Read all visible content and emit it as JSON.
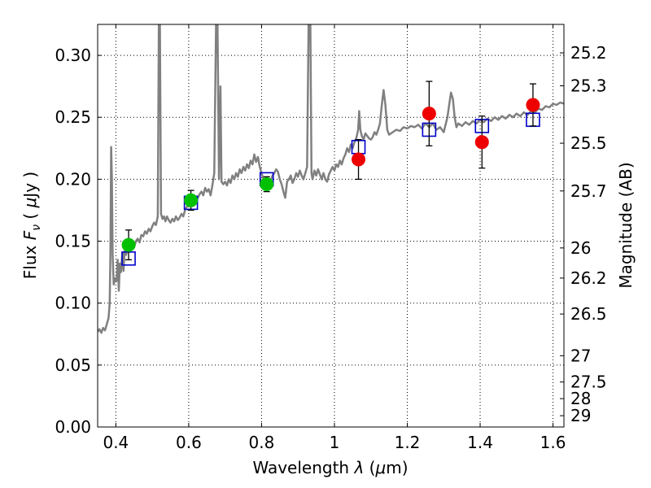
{
  "chart_data": {
    "type": "scatter",
    "xlabel": {
      "prefix": "Wavelength  ",
      "symbol": "λ",
      "suffix_open": " (",
      "mu": "μ",
      "suffix_close": "m)"
    },
    "ylabel": {
      "prefix": "Flux  ",
      "symbol": "F",
      "sub": "ν",
      "suffix_open": "  ( ",
      "mu": "μ",
      "suffix_close": "Jy )"
    },
    "y2label": "Magnitude (AB)",
    "xlim": [
      0.35,
      1.63
    ],
    "ylim": [
      0.0,
      0.325
    ],
    "grid": true,
    "x_ticks": [
      {
        "v": 0.4,
        "label": "0.4"
      },
      {
        "v": 0.6,
        "label": "0.6"
      },
      {
        "v": 0.8,
        "label": "0.8"
      },
      {
        "v": 1.0,
        "label": "1"
      },
      {
        "v": 1.2,
        "label": "1.2"
      },
      {
        "v": 1.4,
        "label": "1.4"
      },
      {
        "v": 1.6,
        "label": "1.6"
      }
    ],
    "y_ticks": [
      {
        "v": 0.0,
        "label": "0.00"
      },
      {
        "v": 0.05,
        "label": "0.05"
      },
      {
        "v": 0.1,
        "label": "0.10"
      },
      {
        "v": 0.15,
        "label": "0.15"
      },
      {
        "v": 0.2,
        "label": "0.20"
      },
      {
        "v": 0.25,
        "label": "0.25"
      },
      {
        "v": 0.3,
        "label": "0.30"
      }
    ],
    "mag_ticks": [
      "25.2",
      "25.3",
      "25.5",
      "25.7",
      "26",
      "26.2",
      "26.5",
      "27",
      "27.5",
      "28",
      "29"
    ],
    "spectrum": {
      "color": "#808080",
      "points": [
        [
          0.35,
          0.077
        ],
        [
          0.355,
          0.079
        ],
        [
          0.36,
          0.076
        ],
        [
          0.365,
          0.08
        ],
        [
          0.37,
          0.078
        ],
        [
          0.375,
          0.083
        ],
        [
          0.38,
          0.088
        ],
        [
          0.383,
          0.1
        ],
        [
          0.385,
          0.14
        ],
        [
          0.387,
          0.226
        ],
        [
          0.389,
          0.2
        ],
        [
          0.391,
          0.14
        ],
        [
          0.394,
          0.115
        ],
        [
          0.398,
          0.12
        ],
        [
          0.402,
          0.118
        ],
        [
          0.405,
          0.135
        ],
        [
          0.408,
          0.11
        ],
        [
          0.411,
          0.132
        ],
        [
          0.414,
          0.125
        ],
        [
          0.418,
          0.141
        ],
        [
          0.421,
          0.126
        ],
        [
          0.424,
          0.142
        ],
        [
          0.428,
          0.139
        ],
        [
          0.432,
          0.143
        ],
        [
          0.435,
          0.148
        ],
        [
          0.44,
          0.142
        ],
        [
          0.445,
          0.146
        ],
        [
          0.45,
          0.145
        ],
        [
          0.455,
          0.15
        ],
        [
          0.46,
          0.152
        ],
        [
          0.465,
          0.149
        ],
        [
          0.47,
          0.155
        ],
        [
          0.475,
          0.154
        ],
        [
          0.48,
          0.158
        ],
        [
          0.485,
          0.156
        ],
        [
          0.49,
          0.16
        ],
        [
          0.495,
          0.158
        ],
        [
          0.5,
          0.162
        ],
        [
          0.505,
          0.165
        ],
        [
          0.51,
          0.163
        ],
        [
          0.515,
          0.17
        ],
        [
          0.518,
          0.325
        ],
        [
          0.521,
          0.325
        ],
        [
          0.524,
          0.172
        ],
        [
          0.528,
          0.168
        ],
        [
          0.532,
          0.17
        ],
        [
          0.536,
          0.166
        ],
        [
          0.54,
          0.17
        ],
        [
          0.545,
          0.167
        ],
        [
          0.55,
          0.165
        ],
        [
          0.555,
          0.168
        ],
        [
          0.56,
          0.166
        ],
        [
          0.565,
          0.17
        ],
        [
          0.57,
          0.167
        ],
        [
          0.575,
          0.169
        ],
        [
          0.58,
          0.172
        ],
        [
          0.585,
          0.17
        ],
        [
          0.59,
          0.175
        ],
        [
          0.595,
          0.178
        ],
        [
          0.6,
          0.18
        ],
        [
          0.605,
          0.182
        ],
        [
          0.61,
          0.184
        ],
        [
          0.615,
          0.182
        ],
        [
          0.62,
          0.186
        ],
        [
          0.625,
          0.185
        ],
        [
          0.63,
          0.188
        ],
        [
          0.635,
          0.19
        ],
        [
          0.64,
          0.187
        ],
        [
          0.645,
          0.193
        ],
        [
          0.65,
          0.19
        ],
        [
          0.655,
          0.192
        ],
        [
          0.66,
          0.187
        ],
        [
          0.665,
          0.195
        ],
        [
          0.67,
          0.205
        ],
        [
          0.675,
          0.325
        ],
        [
          0.679,
          0.325
        ],
        [
          0.683,
          0.2
        ],
        [
          0.687,
          0.275
        ],
        [
          0.69,
          0.198
        ],
        [
          0.695,
          0.196
        ],
        [
          0.7,
          0.198
        ],
        [
          0.705,
          0.195
        ],
        [
          0.71,
          0.2
        ],
        [
          0.715,
          0.197
        ],
        [
          0.72,
          0.203
        ],
        [
          0.725,
          0.2
        ],
        [
          0.73,
          0.205
        ],
        [
          0.735,
          0.202
        ],
        [
          0.74,
          0.208
        ],
        [
          0.745,
          0.205
        ],
        [
          0.75,
          0.21
        ],
        [
          0.755,
          0.207
        ],
        [
          0.76,
          0.212
        ],
        [
          0.765,
          0.209
        ],
        [
          0.77,
          0.215
        ],
        [
          0.775,
          0.212
        ],
        [
          0.78,
          0.22
        ],
        [
          0.785,
          0.214
        ],
        [
          0.79,
          0.218
        ],
        [
          0.795,
          0.21
        ],
        [
          0.8,
          0.205
        ],
        [
          0.805,
          0.2
        ],
        [
          0.81,
          0.198
        ],
        [
          0.815,
          0.197
        ],
        [
          0.82,
          0.2
        ],
        [
          0.825,
          0.199
        ],
        [
          0.83,
          0.203
        ],
        [
          0.835,
          0.205
        ],
        [
          0.84,
          0.208
        ],
        [
          0.845,
          0.206
        ],
        [
          0.85,
          0.2
        ],
        [
          0.855,
          0.196
        ],
        [
          0.86,
          0.19
        ],
        [
          0.865,
          0.185
        ],
        [
          0.87,
          0.198
        ],
        [
          0.875,
          0.2
        ],
        [
          0.88,
          0.203
        ],
        [
          0.885,
          0.197
        ],
        [
          0.89,
          0.2
        ],
        [
          0.895,
          0.205
        ],
        [
          0.9,
          0.202
        ],
        [
          0.905,
          0.207
        ],
        [
          0.91,
          0.203
        ],
        [
          0.915,
          0.2
        ],
        [
          0.92,
          0.205
        ],
        [
          0.925,
          0.21
        ],
        [
          0.929,
          0.325
        ],
        [
          0.934,
          0.325
        ],
        [
          0.937,
          0.205
        ],
        [
          0.94,
          0.2
        ],
        [
          0.945,
          0.207
        ],
        [
          0.95,
          0.203
        ],
        [
          0.955,
          0.208
        ],
        [
          0.96,
          0.204
        ],
        [
          0.965,
          0.2
        ],
        [
          0.97,
          0.205
        ],
        [
          0.975,
          0.2
        ],
        [
          0.98,
          0.198
        ],
        [
          0.985,
          0.204
        ],
        [
          0.99,
          0.207
        ],
        [
          0.995,
          0.21
        ],
        [
          1.0,
          0.207
        ],
        [
          1.005,
          0.212
        ],
        [
          1.01,
          0.21
        ],
        [
          1.015,
          0.215
        ],
        [
          1.02,
          0.212
        ],
        [
          1.025,
          0.217
        ],
        [
          1.03,
          0.22
        ],
        [
          1.035,
          0.225
        ],
        [
          1.04,
          0.222
        ],
        [
          1.045,
          0.228
        ],
        [
          1.05,
          0.225
        ],
        [
          1.055,
          0.23
        ],
        [
          1.06,
          0.233
        ],
        [
          1.065,
          0.24
        ],
        [
          1.068,
          0.255
        ],
        [
          1.071,
          0.24
        ],
        [
          1.075,
          0.235
        ],
        [
          1.08,
          0.232
        ],
        [
          1.085,
          0.237
        ],
        [
          1.09,
          0.235
        ],
        [
          1.095,
          0.233
        ],
        [
          1.1,
          0.232
        ],
        [
          1.105,
          0.234
        ],
        [
          1.11,
          0.238
        ],
        [
          1.115,
          0.236
        ],
        [
          1.12,
          0.24
        ],
        [
          1.125,
          0.245
        ],
        [
          1.13,
          0.26
        ],
        [
          1.135,
          0.272
        ],
        [
          1.14,
          0.26
        ],
        [
          1.145,
          0.24
        ],
        [
          1.15,
          0.236
        ],
        [
          1.16,
          0.238
        ],
        [
          1.17,
          0.24
        ],
        [
          1.18,
          0.239
        ],
        [
          1.19,
          0.242
        ],
        [
          1.2,
          0.241
        ],
        [
          1.21,
          0.243
        ],
        [
          1.22,
          0.242
        ],
        [
          1.23,
          0.244
        ],
        [
          1.24,
          0.241
        ],
        [
          1.25,
          0.245
        ],
        [
          1.26,
          0.242
        ],
        [
          1.27,
          0.245
        ],
        [
          1.28,
          0.24
        ],
        [
          1.29,
          0.242
        ],
        [
          1.3,
          0.238
        ],
        [
          1.31,
          0.25
        ],
        [
          1.315,
          0.26
        ],
        [
          1.32,
          0.27
        ],
        [
          1.325,
          0.265
        ],
        [
          1.33,
          0.25
        ],
        [
          1.335,
          0.242
        ],
        [
          1.34,
          0.245
        ],
        [
          1.35,
          0.243
        ],
        [
          1.36,
          0.246
        ],
        [
          1.37,
          0.244
        ],
        [
          1.38,
          0.247
        ],
        [
          1.39,
          0.245
        ],
        [
          1.4,
          0.248
        ],
        [
          1.41,
          0.246
        ],
        [
          1.42,
          0.249
        ],
        [
          1.43,
          0.247
        ],
        [
          1.44,
          0.25
        ],
        [
          1.45,
          0.248
        ],
        [
          1.46,
          0.251
        ],
        [
          1.47,
          0.249
        ],
        [
          1.48,
          0.252
        ],
        [
          1.49,
          0.25
        ],
        [
          1.5,
          0.253
        ],
        [
          1.51,
          0.251
        ],
        [
          1.52,
          0.254
        ],
        [
          1.53,
          0.252
        ],
        [
          1.54,
          0.255
        ],
        [
          1.55,
          0.254
        ],
        [
          1.56,
          0.257
        ],
        [
          1.57,
          0.256
        ],
        [
          1.58,
          0.259
        ],
        [
          1.59,
          0.258
        ],
        [
          1.6,
          0.261
        ],
        [
          1.61,
          0.26
        ],
        [
          1.62,
          0.262
        ],
        [
          1.63,
          0.261
        ]
      ]
    },
    "series": [
      {
        "marker": "circle",
        "color": "#00c000",
        "points": [
          {
            "x": 0.435,
            "y": 0.147,
            "err": 0.012
          },
          {
            "x": 0.606,
            "y": 0.183,
            "err": 0.008
          },
          {
            "x": 0.814,
            "y": 0.196,
            "err": 0.006
          }
        ]
      },
      {
        "marker": "circle",
        "color": "#ee0000",
        "points": [
          {
            "x": 1.066,
            "y": 0.216,
            "err": 0.016
          },
          {
            "x": 1.26,
            "y": 0.253,
            "err": 0.026
          },
          {
            "x": 1.405,
            "y": 0.23,
            "err": 0.021
          },
          {
            "x": 1.545,
            "y": 0.26,
            "err": 0.017
          }
        ]
      },
      {
        "marker": "open-square",
        "color": "#0000cc",
        "points": [
          {
            "x": 0.435,
            "y": 0.136
          },
          {
            "x": 0.606,
            "y": 0.181
          },
          {
            "x": 0.814,
            "y": 0.2
          },
          {
            "x": 1.066,
            "y": 0.226
          },
          {
            "x": 1.26,
            "y": 0.24
          },
          {
            "x": 1.405,
            "y": 0.243
          },
          {
            "x": 1.545,
            "y": 0.248
          }
        ]
      }
    ]
  }
}
